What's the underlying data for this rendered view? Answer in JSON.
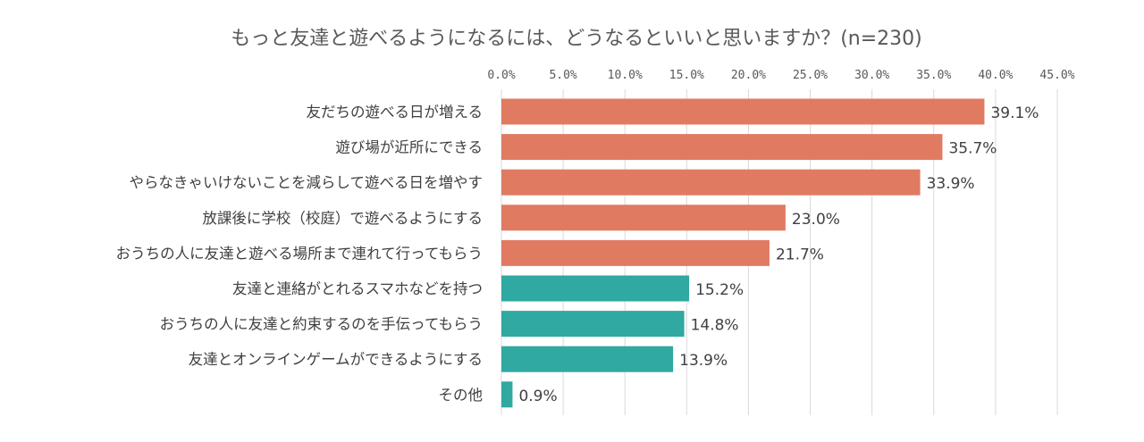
{
  "chart_data": {
    "type": "bar",
    "orientation": "horizontal",
    "title": "もっと友達と遊べるようになるには、どうなるといいと思いますか？(n=230)",
    "xlim": [
      0,
      45
    ],
    "tick_step": 5,
    "tick_labels": [
      "0.0%",
      "5.0%",
      "10.0%",
      "15.0%",
      "20.0%",
      "25.0%",
      "30.0%",
      "35.0%",
      "40.0%",
      "45.0%"
    ],
    "categories": [
      "友だちの遊べる日が増える",
      "遊び場が近所にできる",
      "やらなきゃいけないことを減らして遊べる日を増やす",
      "放課後に学校（校庭）で遊べるようにする",
      "おうちの人に友達と遊べる場所まで連れて行ってもらう",
      "友達と連絡がとれるスマホなどを持つ",
      "おうちの人に友達と約束するのを手伝ってもらう",
      "友達とオンラインゲームができるようにする",
      "その他"
    ],
    "values": [
      39.1,
      35.7,
      33.9,
      23.0,
      21.7,
      15.2,
      14.8,
      13.9,
      0.9
    ],
    "value_labels": [
      "39.1%",
      "35.7%",
      "33.9%",
      "23.0%",
      "21.7%",
      "15.2%",
      "14.8%",
      "13.9%",
      "0.9%"
    ],
    "bar_colors": [
      "#e07b62",
      "#e07b62",
      "#e07b62",
      "#e07b62",
      "#e07b62",
      "#2fa9a1",
      "#2fa9a1",
      "#2fa9a1",
      "#2fa9a1"
    ],
    "grid": true,
    "legend": "none"
  }
}
